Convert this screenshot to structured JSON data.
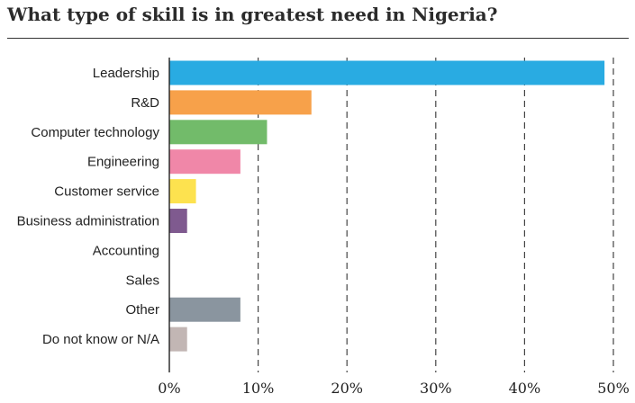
{
  "chart_data": {
    "type": "bar",
    "orientation": "horizontal",
    "title": "What type of skill is in greatest need in Nigeria?",
    "categories": [
      "Leadership",
      "R&D",
      "Computer technology",
      "Engineering",
      "Customer service",
      "Business administration",
      "Accounting",
      "Sales",
      "Other",
      "Do not know or N/A"
    ],
    "values": [
      49,
      16,
      11,
      8,
      3,
      2,
      0,
      0,
      8,
      2
    ],
    "colors": [
      "#29abe2",
      "#f7a14a",
      "#72bb6a",
      "#f087a8",
      "#fde24f",
      "#7f5a8f",
      "#999999",
      "#999999",
      "#8a959f",
      "#c2b6b4"
    ],
    "xlim": [
      0,
      50
    ],
    "xticks": [
      0,
      10,
      20,
      30,
      40,
      50
    ],
    "xtick_labels": [
      "0%",
      "10%",
      "20%",
      "30%",
      "40%",
      "50%"
    ],
    "grid": "vertical-dashed",
    "legend": "none"
  }
}
